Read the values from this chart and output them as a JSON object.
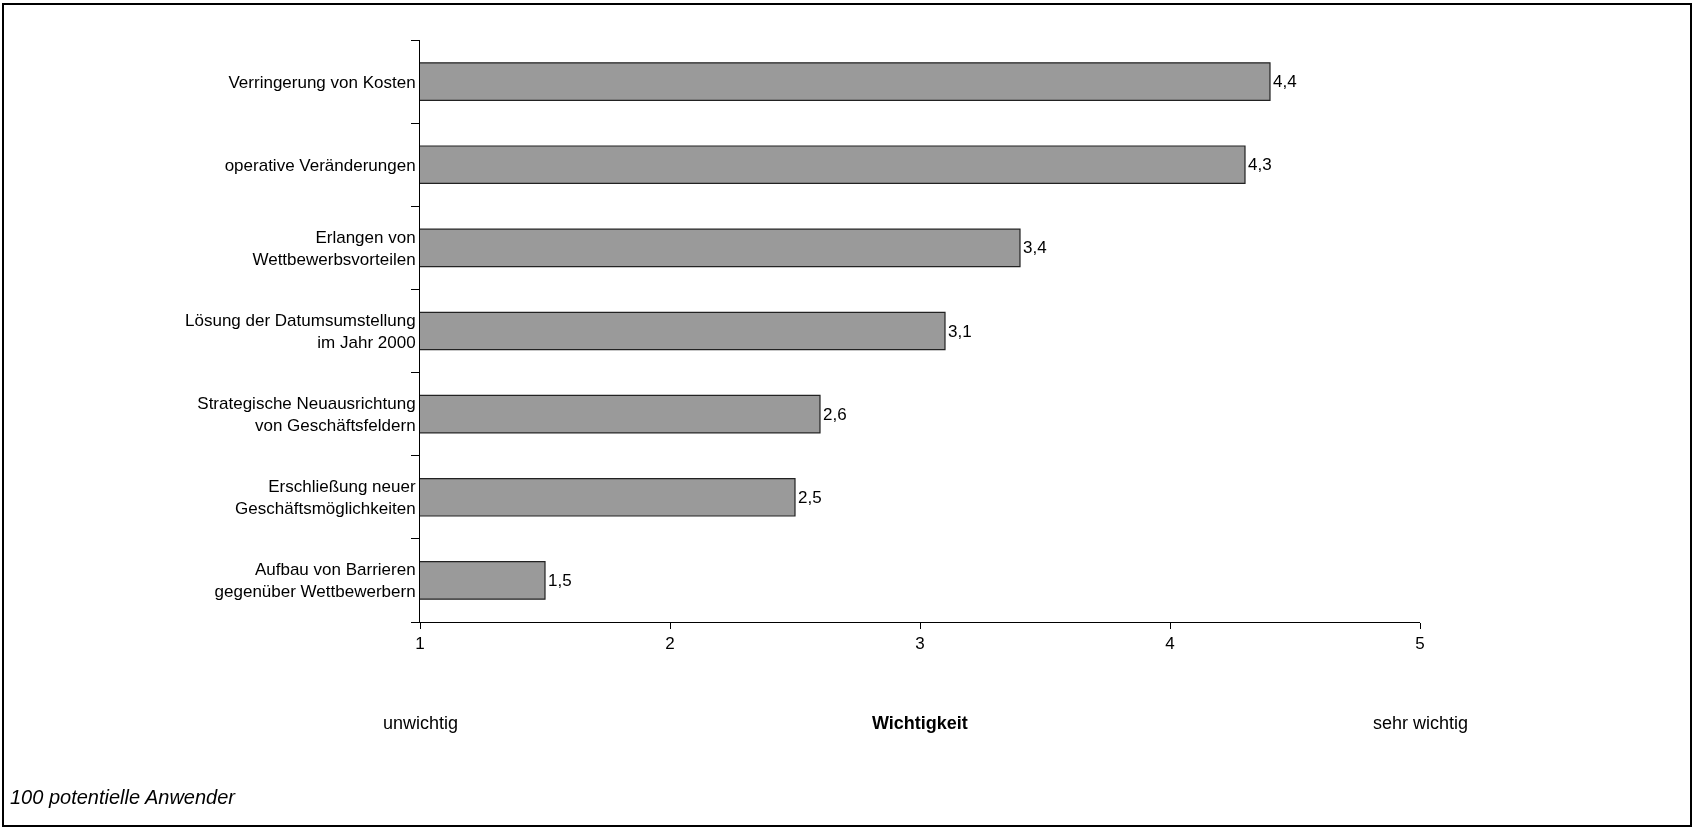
{
  "chart_data": {
    "type": "bar",
    "orientation": "horizontal",
    "xlabel": "Wichtigkeit",
    "categories": [
      "Verringerung von Kosten",
      "operative Veränderungen",
      "Erlangen von\nWettbewerbsvorteilen",
      "Lösung der Datumsumstellung\nim Jahr 2000",
      "Strategische Neuausrichtung\nvon Geschäftsfeldern",
      "Erschließung neuer\nGeschäftsmöglichkeiten",
      "Aufbau von Barrieren\ngegenüber Wettbewerbern"
    ],
    "values": [
      4.4,
      4.3,
      3.4,
      3.1,
      2.6,
      2.5,
      1.5
    ],
    "value_labels": [
      "4,4",
      "4,3",
      "3,4",
      "3,1",
      "2,6",
      "2,5",
      "1,5"
    ],
    "color": "#9a9a9a",
    "xlim": [
      1,
      5
    ],
    "xticks": [
      1,
      2,
      3,
      4,
      5
    ],
    "legend": false,
    "annotations": [
      "unwichtig",
      "sehr wichtig",
      "100 potentielle Anwender"
    ]
  }
}
